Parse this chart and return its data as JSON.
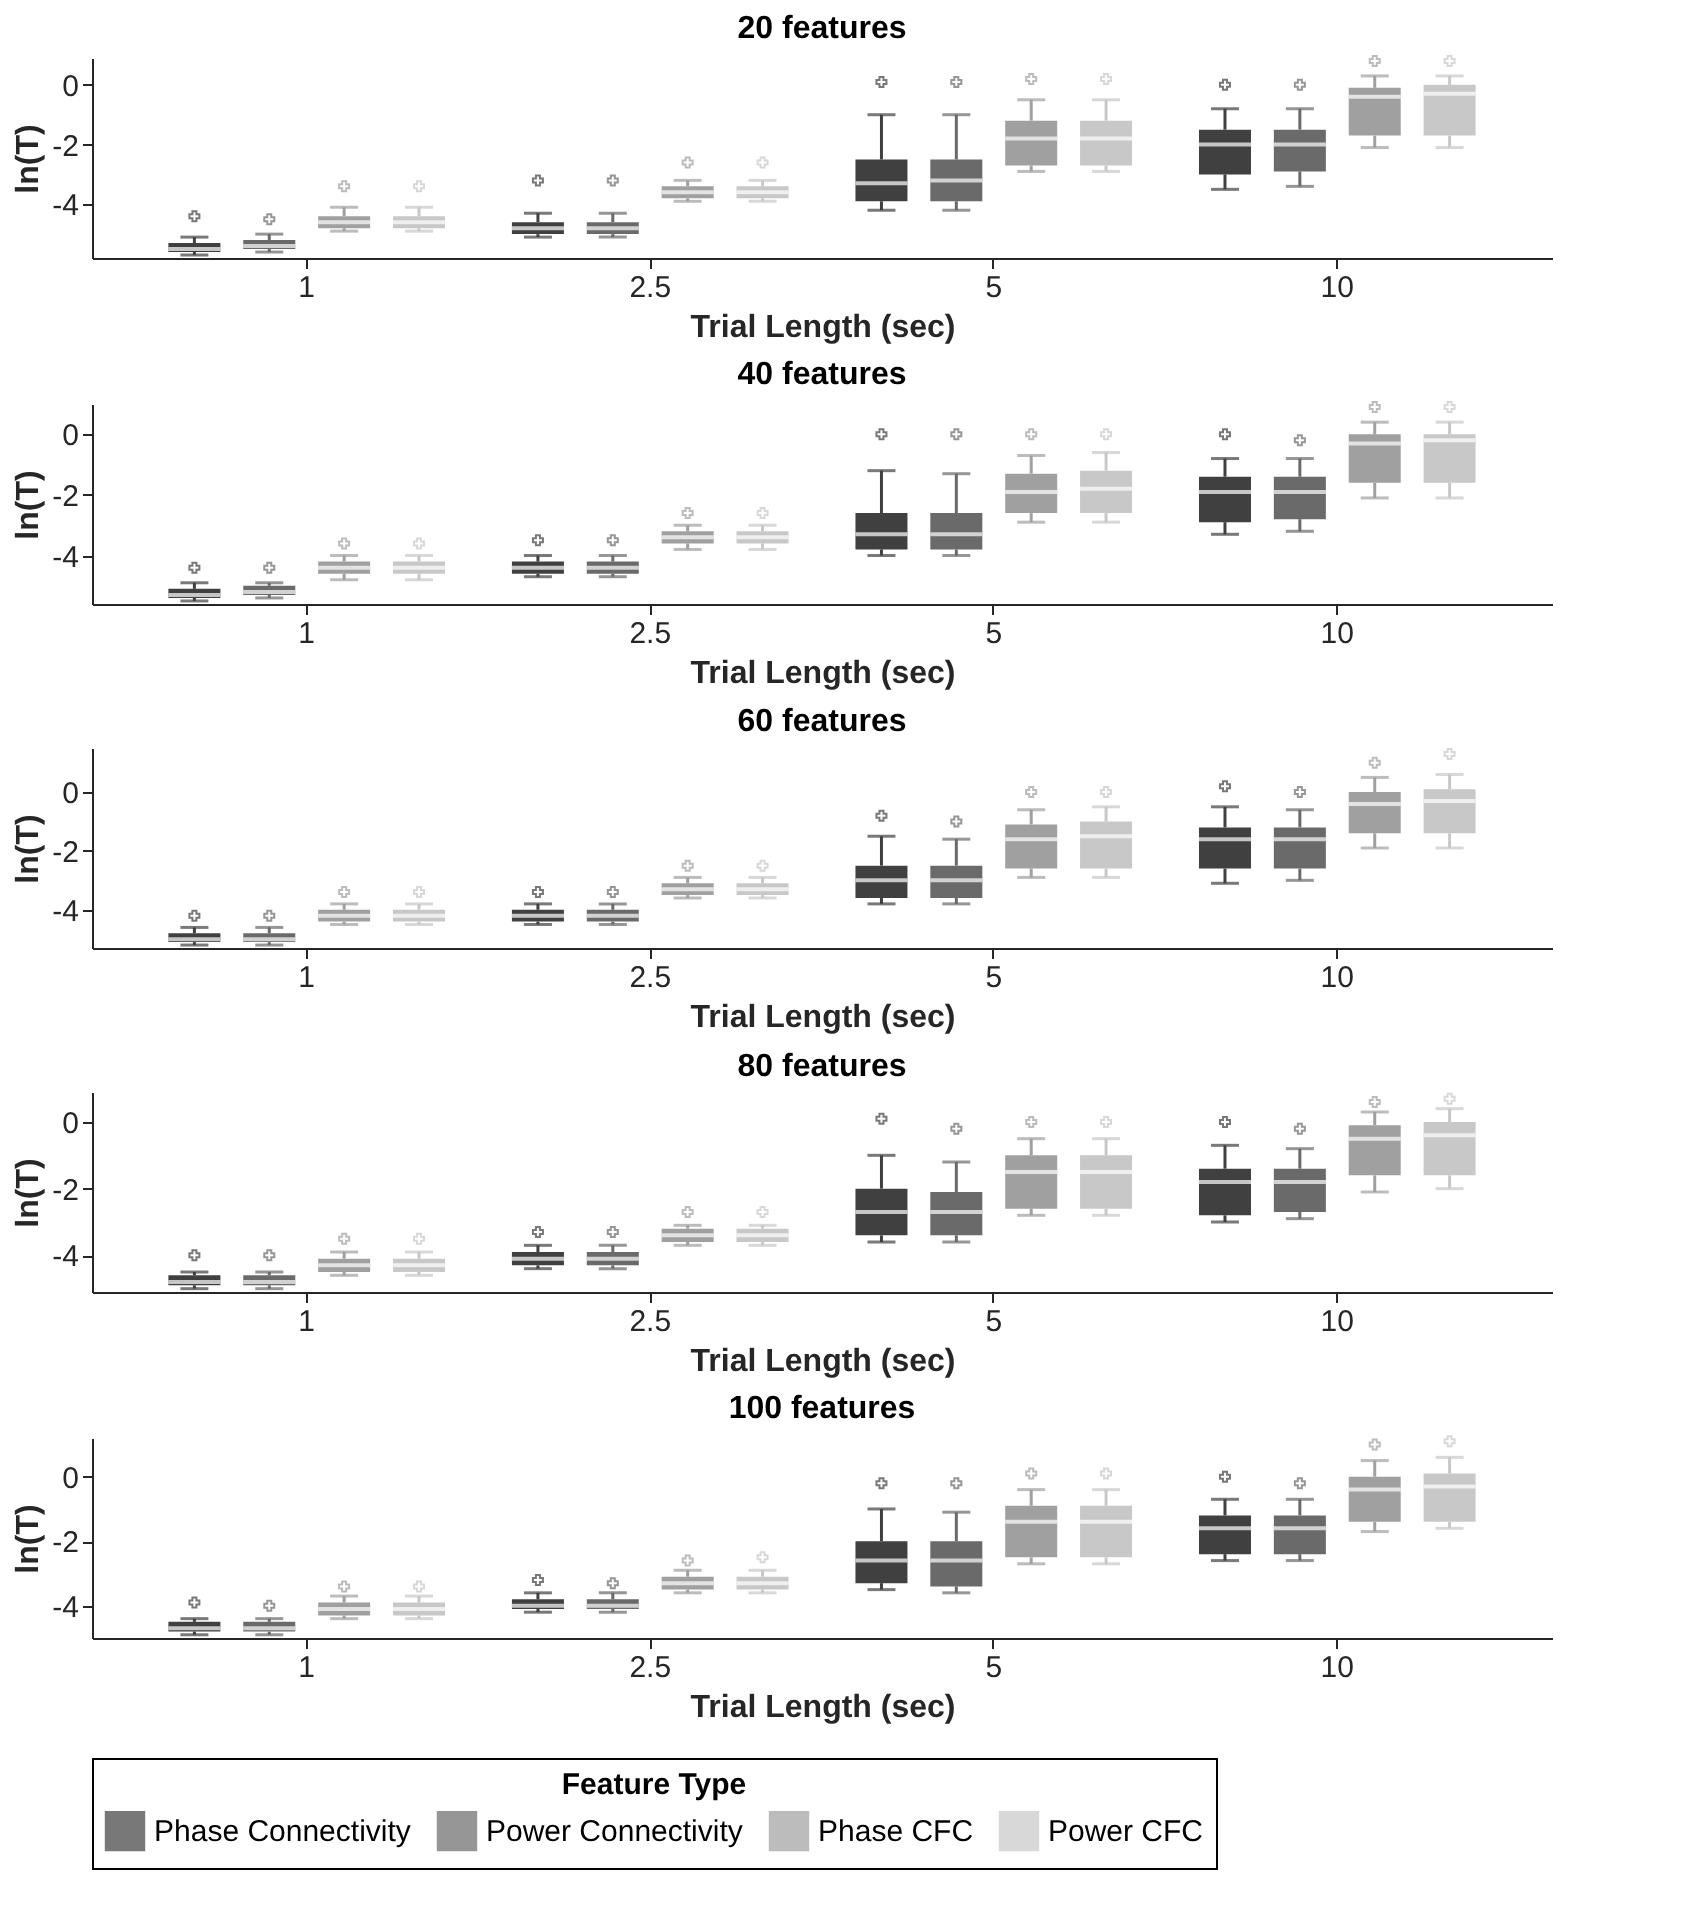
{
  "chart_data": [
    {
      "type": "box",
      "title": "20 features",
      "xlabel": "Trial Length (sec)",
      "ylabel": "ln(T)",
      "categories": [
        "1",
        "2.5",
        "5",
        "10"
      ],
      "ylim": [
        -5.8,
        0.9
      ],
      "yticks": [
        -4,
        -2,
        0
      ],
      "grid": false,
      "series": [
        {
          "color": "#404040",
          "boxes": [
            {
              "low": -5.7,
              "q1": -5.6,
              "median": -5.5,
              "q3": -5.3,
              "high": -5.1,
              "outliers": [
                -4.4
              ]
            },
            {
              "low": -5.1,
              "q1": -5.0,
              "median": -4.8,
              "q3": -4.6,
              "high": -4.3,
              "outliers": [
                -3.2
              ]
            },
            {
              "low": -4.2,
              "q1": -3.9,
              "median": -3.3,
              "q3": -2.5,
              "high": -1.0,
              "outliers": [
                0.1
              ]
            },
            {
              "low": -3.5,
              "q1": -3.0,
              "median": -2.0,
              "q3": -1.5,
              "high": -0.8,
              "outliers": [
                0.0
              ]
            }
          ]
        },
        {
          "color": "#6a6a6a",
          "boxes": [
            {
              "low": -5.6,
              "q1": -5.5,
              "median": -5.4,
              "q3": -5.2,
              "high": -5.0,
              "outliers": [
                -4.5
              ]
            },
            {
              "low": -5.1,
              "q1": -5.0,
              "median": -4.8,
              "q3": -4.6,
              "high": -4.3,
              "outliers": [
                -3.2
              ]
            },
            {
              "low": -4.2,
              "q1": -3.9,
              "median": -3.2,
              "q3": -2.5,
              "high": -1.0,
              "outliers": [
                0.1
              ]
            },
            {
              "low": -3.4,
              "q1": -2.9,
              "median": -2.0,
              "q3": -1.5,
              "high": -0.8,
              "outliers": [
                0.0
              ]
            }
          ]
        },
        {
          "color": "#a0a0a0",
          "boxes": [
            {
              "low": -4.9,
              "q1": -4.8,
              "median": -4.6,
              "q3": -4.4,
              "high": -4.1,
              "outliers": [
                -3.4
              ]
            },
            {
              "low": -3.9,
              "q1": -3.8,
              "median": -3.6,
              "q3": -3.4,
              "high": -3.2,
              "outliers": [
                -2.6
              ]
            },
            {
              "low": -2.9,
              "q1": -2.7,
              "median": -1.8,
              "q3": -1.2,
              "high": -0.5,
              "outliers": [
                0.2
              ]
            },
            {
              "low": -2.1,
              "q1": -1.7,
              "median": -0.4,
              "q3": -0.1,
              "high": 0.3,
              "outliers": [
                0.8
              ]
            }
          ]
        },
        {
          "color": "#c8c8c8",
          "boxes": [
            {
              "low": -4.9,
              "q1": -4.8,
              "median": -4.6,
              "q3": -4.4,
              "high": -4.1,
              "outliers": [
                -3.4
              ]
            },
            {
              "low": -3.9,
              "q1": -3.8,
              "median": -3.6,
              "q3": -3.4,
              "high": -3.2,
              "outliers": [
                -2.6
              ]
            },
            {
              "low": -2.9,
              "q1": -2.7,
              "median": -1.8,
              "q3": -1.2,
              "high": -0.5,
              "outliers": [
                0.2
              ]
            },
            {
              "low": -2.1,
              "q1": -1.7,
              "median": -0.3,
              "q3": 0.0,
              "high": 0.3,
              "outliers": [
                0.8
              ]
            }
          ]
        }
      ]
    },
    {
      "type": "box",
      "title": "40 features",
      "xlabel": "Trial Length (sec)",
      "ylabel": "ln(T)",
      "categories": [
        "1",
        "2.5",
        "5",
        "10"
      ],
      "ylim": [
        -5.6,
        1.0
      ],
      "yticks": [
        -4,
        -2,
        0
      ],
      "grid": false,
      "series": [
        {
          "color": "#404040",
          "boxes": [
            {
              "low": -5.5,
              "q1": -5.4,
              "median": -5.3,
              "q3": -5.1,
              "high": -4.9,
              "outliers": [
                -4.4
              ]
            },
            {
              "low": -4.7,
              "q1": -4.6,
              "median": -4.4,
              "q3": -4.2,
              "high": -4.0,
              "outliers": [
                -3.5
              ]
            },
            {
              "low": -4.0,
              "q1": -3.8,
              "median": -3.3,
              "q3": -2.6,
              "high": -1.2,
              "outliers": [
                0.0
              ]
            },
            {
              "low": -3.3,
              "q1": -2.9,
              "median": -1.9,
              "q3": -1.4,
              "high": -0.8,
              "outliers": [
                0.0
              ]
            }
          ]
        },
        {
          "color": "#6a6a6a",
          "boxes": [
            {
              "low": -5.4,
              "q1": -5.3,
              "median": -5.2,
              "q3": -5.0,
              "high": -4.9,
              "outliers": [
                -4.4
              ]
            },
            {
              "low": -4.7,
              "q1": -4.6,
              "median": -4.4,
              "q3": -4.2,
              "high": -4.0,
              "outliers": [
                -3.5
              ]
            },
            {
              "low": -4.0,
              "q1": -3.8,
              "median": -3.3,
              "q3": -2.6,
              "high": -1.3,
              "outliers": [
                0.0
              ]
            },
            {
              "low": -3.2,
              "q1": -2.8,
              "median": -1.9,
              "q3": -1.4,
              "high": -0.8,
              "outliers": [
                -0.2
              ]
            }
          ]
        },
        {
          "color": "#a0a0a0",
          "boxes": [
            {
              "low": -4.8,
              "q1": -4.6,
              "median": -4.4,
              "q3": -4.2,
              "high": -4.0,
              "outliers": [
                -3.6
              ]
            },
            {
              "low": -3.8,
              "q1": -3.6,
              "median": -3.4,
              "q3": -3.2,
              "high": -3.0,
              "outliers": [
                -2.6
              ]
            },
            {
              "low": -2.9,
              "q1": -2.6,
              "median": -1.9,
              "q3": -1.3,
              "high": -0.7,
              "outliers": [
                0.0
              ]
            },
            {
              "low": -2.1,
              "q1": -1.6,
              "median": -0.3,
              "q3": 0.0,
              "high": 0.4,
              "outliers": [
                0.9
              ]
            }
          ]
        },
        {
          "color": "#c8c8c8",
          "boxes": [
            {
              "low": -4.8,
              "q1": -4.6,
              "median": -4.4,
              "q3": -4.2,
              "high": -4.0,
              "outliers": [
                -3.6
              ]
            },
            {
              "low": -3.8,
              "q1": -3.6,
              "median": -3.4,
              "q3": -3.2,
              "high": -3.0,
              "outliers": [
                -2.6
              ]
            },
            {
              "low": -2.9,
              "q1": -2.6,
              "median": -1.8,
              "q3": -1.2,
              "high": -0.6,
              "outliers": [
                0.0
              ]
            },
            {
              "low": -2.1,
              "q1": -1.6,
              "median": -0.2,
              "q3": 0.0,
              "high": 0.4,
              "outliers": [
                0.9
              ]
            }
          ]
        }
      ]
    },
    {
      "type": "box",
      "title": "60 features",
      "xlabel": "Trial Length (sec)",
      "ylabel": "ln(T)",
      "categories": [
        "1",
        "2.5",
        "5",
        "10"
      ],
      "ylim": [
        -5.3,
        1.5
      ],
      "yticks": [
        -4,
        -2,
        0
      ],
      "grid": false,
      "series": [
        {
          "color": "#404040",
          "boxes": [
            {
              "low": -5.2,
              "q1": -5.1,
              "median": -5.0,
              "q3": -4.8,
              "high": -4.6,
              "outliers": [
                -4.2
              ]
            },
            {
              "low": -4.5,
              "q1": -4.4,
              "median": -4.2,
              "q3": -4.0,
              "high": -3.8,
              "outliers": [
                -3.4
              ]
            },
            {
              "low": -3.8,
              "q1": -3.6,
              "median": -3.0,
              "q3": -2.5,
              "high": -1.5,
              "outliers": [
                -0.8
              ]
            },
            {
              "low": -3.1,
              "q1": -2.6,
              "median": -1.6,
              "q3": -1.2,
              "high": -0.5,
              "outliers": [
                0.2
              ]
            }
          ]
        },
        {
          "color": "#6a6a6a",
          "boxes": [
            {
              "low": -5.2,
              "q1": -5.1,
              "median": -5.0,
              "q3": -4.8,
              "high": -4.6,
              "outliers": [
                -4.2
              ]
            },
            {
              "low": -4.5,
              "q1": -4.4,
              "median": -4.2,
              "q3": -4.0,
              "high": -3.8,
              "outliers": [
                -3.4
              ]
            },
            {
              "low": -3.8,
              "q1": -3.6,
              "median": -3.0,
              "q3": -2.5,
              "high": -1.6,
              "outliers": [
                -1.0
              ]
            },
            {
              "low": -3.0,
              "q1": -2.6,
              "median": -1.6,
              "q3": -1.2,
              "high": -0.6,
              "outliers": [
                0.0
              ]
            }
          ]
        },
        {
          "color": "#a0a0a0",
          "boxes": [
            {
              "low": -4.5,
              "q1": -4.4,
              "median": -4.2,
              "q3": -4.0,
              "high": -3.8,
              "outliers": [
                -3.4
              ]
            },
            {
              "low": -3.6,
              "q1": -3.5,
              "median": -3.3,
              "q3": -3.1,
              "high": -2.9,
              "outliers": [
                -2.5
              ]
            },
            {
              "low": -2.9,
              "q1": -2.6,
              "median": -1.6,
              "q3": -1.1,
              "high": -0.6,
              "outliers": [
                0.0
              ]
            },
            {
              "low": -1.9,
              "q1": -1.4,
              "median": -0.4,
              "q3": 0.0,
              "high": 0.5,
              "outliers": [
                1.0
              ]
            }
          ]
        },
        {
          "color": "#c8c8c8",
          "boxes": [
            {
              "low": -4.5,
              "q1": -4.4,
              "median": -4.2,
              "q3": -4.0,
              "high": -3.8,
              "outliers": [
                -3.4
              ]
            },
            {
              "low": -3.6,
              "q1": -3.5,
              "median": -3.3,
              "q3": -3.1,
              "high": -2.9,
              "outliers": [
                -2.5
              ]
            },
            {
              "low": -2.9,
              "q1": -2.6,
              "median": -1.5,
              "q3": -1.0,
              "high": -0.5,
              "outliers": [
                0.0
              ]
            },
            {
              "low": -1.9,
              "q1": -1.4,
              "median": -0.3,
              "q3": 0.1,
              "high": 0.6,
              "outliers": [
                1.3
              ]
            }
          ]
        }
      ]
    },
    {
      "type": "box",
      "title": "80 features",
      "xlabel": "Trial Length (sec)",
      "ylabel": "ln(T)",
      "categories": [
        "1",
        "2.5",
        "5",
        "10"
      ],
      "ylim": [
        -5.1,
        0.9
      ],
      "yticks": [
        -4,
        -2,
        0
      ],
      "grid": false,
      "series": [
        {
          "color": "#404040",
          "boxes": [
            {
              "low": -5.0,
              "q1": -4.9,
              "median": -4.8,
              "q3": -4.6,
              "high": -4.5,
              "outliers": [
                -4.0
              ]
            },
            {
              "low": -4.4,
              "q1": -4.3,
              "median": -4.1,
              "q3": -3.9,
              "high": -3.7,
              "outliers": [
                -3.3
              ]
            },
            {
              "low": -3.6,
              "q1": -3.4,
              "median": -2.7,
              "q3": -2.0,
              "high": -1.0,
              "outliers": [
                0.1
              ]
            },
            {
              "low": -3.0,
              "q1": -2.8,
              "median": -1.8,
              "q3": -1.4,
              "high": -0.7,
              "outliers": [
                0.0
              ]
            }
          ]
        },
        {
          "color": "#6a6a6a",
          "boxes": [
            {
              "low": -5.0,
              "q1": -4.9,
              "median": -4.8,
              "q3": -4.6,
              "high": -4.5,
              "outliers": [
                -4.0
              ]
            },
            {
              "low": -4.4,
              "q1": -4.3,
              "median": -4.1,
              "q3": -3.9,
              "high": -3.7,
              "outliers": [
                -3.3
              ]
            },
            {
              "low": -3.6,
              "q1": -3.4,
              "median": -2.7,
              "q3": -2.1,
              "high": -1.2,
              "outliers": [
                -0.2
              ]
            },
            {
              "low": -2.9,
              "q1": -2.7,
              "median": -1.8,
              "q3": -1.4,
              "high": -0.8,
              "outliers": [
                -0.2
              ]
            }
          ]
        },
        {
          "color": "#a0a0a0",
          "boxes": [
            {
              "low": -4.6,
              "q1": -4.5,
              "median": -4.3,
              "q3": -4.1,
              "high": -3.9,
              "outliers": [
                -3.5
              ]
            },
            {
              "low": -3.7,
              "q1": -3.6,
              "median": -3.4,
              "q3": -3.2,
              "high": -3.1,
              "outliers": [
                -2.7
              ]
            },
            {
              "low": -2.8,
              "q1": -2.6,
              "median": -1.5,
              "q3": -1.0,
              "high": -0.5,
              "outliers": [
                0.0
              ]
            },
            {
              "low": -2.1,
              "q1": -1.6,
              "median": -0.5,
              "q3": -0.1,
              "high": 0.3,
              "outliers": [
                0.6
              ]
            }
          ]
        },
        {
          "color": "#c8c8c8",
          "boxes": [
            {
              "low": -4.6,
              "q1": -4.5,
              "median": -4.3,
              "q3": -4.1,
              "high": -3.9,
              "outliers": [
                -3.5
              ]
            },
            {
              "low": -3.7,
              "q1": -3.6,
              "median": -3.4,
              "q3": -3.2,
              "high": -3.1,
              "outliers": [
                -2.7
              ]
            },
            {
              "low": -2.8,
              "q1": -2.6,
              "median": -1.5,
              "q3": -1.0,
              "high": -0.5,
              "outliers": [
                0.0
              ]
            },
            {
              "low": -2.0,
              "q1": -1.6,
              "median": -0.4,
              "q3": 0.0,
              "high": 0.4,
              "outliers": [
                0.7
              ]
            }
          ]
        }
      ]
    },
    {
      "type": "box",
      "title": "100 features",
      "xlabel": "Trial Length (sec)",
      "ylabel": "ln(T)",
      "categories": [
        "1",
        "2.5",
        "5",
        "10"
      ],
      "ylim": [
        -5.0,
        1.2
      ],
      "yticks": [
        -4,
        -2,
        0
      ],
      "grid": false,
      "legend": "bottom",
      "legend_title": "Feature Type",
      "series": [
        {
          "name": "Phase Connectivity",
          "color": "#404040",
          "boxes": [
            {
              "low": -4.9,
              "q1": -4.8,
              "median": -4.7,
              "q3": -4.5,
              "high": -4.4,
              "outliers": [
                -3.9
              ]
            },
            {
              "low": -4.2,
              "q1": -4.1,
              "median": -4.0,
              "q3": -3.8,
              "high": -3.6,
              "outliers": [
                -3.2
              ]
            },
            {
              "low": -3.5,
              "q1": -3.3,
              "median": -2.6,
              "q3": -2.0,
              "high": -1.0,
              "outliers": [
                -0.2
              ]
            },
            {
              "low": -2.6,
              "q1": -2.4,
              "median": -1.6,
              "q3": -1.2,
              "high": -0.7,
              "outliers": [
                0.0
              ]
            }
          ]
        },
        {
          "name": "Power Connectivity",
          "color": "#6a6a6a",
          "boxes": [
            {
              "low": -4.9,
              "q1": -4.8,
              "median": -4.7,
              "q3": -4.5,
              "high": -4.4,
              "outliers": [
                -4.0
              ]
            },
            {
              "low": -4.2,
              "q1": -4.1,
              "median": -4.0,
              "q3": -3.8,
              "high": -3.6,
              "outliers": [
                -3.3
              ]
            },
            {
              "low": -3.6,
              "q1": -3.4,
              "median": -2.6,
              "q3": -2.0,
              "high": -1.1,
              "outliers": [
                -0.2
              ]
            },
            {
              "low": -2.6,
              "q1": -2.4,
              "median": -1.6,
              "q3": -1.2,
              "high": -0.7,
              "outliers": [
                -0.2
              ]
            }
          ]
        },
        {
          "name": "Phase CFC",
          "color": "#a0a0a0",
          "boxes": [
            {
              "low": -4.4,
              "q1": -4.3,
              "median": -4.1,
              "q3": -3.9,
              "high": -3.7,
              "outliers": [
                -3.4
              ]
            },
            {
              "low": -3.6,
              "q1": -3.5,
              "median": -3.3,
              "q3": -3.1,
              "high": -2.9,
              "outliers": [
                -2.6
              ]
            },
            {
              "low": -2.7,
              "q1": -2.5,
              "median": -1.4,
              "q3": -0.9,
              "high": -0.4,
              "outliers": [
                0.1
              ]
            },
            {
              "low": -1.7,
              "q1": -1.4,
              "median": -0.4,
              "q3": 0.0,
              "high": 0.5,
              "outliers": [
                1.0
              ]
            }
          ]
        },
        {
          "name": "Power CFC",
          "color": "#c8c8c8",
          "boxes": [
            {
              "low": -4.4,
              "q1": -4.3,
              "median": -4.1,
              "q3": -3.9,
              "high": -3.7,
              "outliers": [
                -3.4
              ]
            },
            {
              "low": -3.6,
              "q1": -3.5,
              "median": -3.3,
              "q3": -3.1,
              "high": -2.9,
              "outliers": [
                -2.5
              ]
            },
            {
              "low": -2.7,
              "q1": -2.5,
              "median": -1.4,
              "q3": -0.9,
              "high": -0.4,
              "outliers": [
                0.1
              ]
            },
            {
              "low": -1.6,
              "q1": -1.4,
              "median": -0.3,
              "q3": 0.1,
              "high": 0.6,
              "outliers": [
                1.1
              ]
            }
          ]
        }
      ]
    }
  ]
}
